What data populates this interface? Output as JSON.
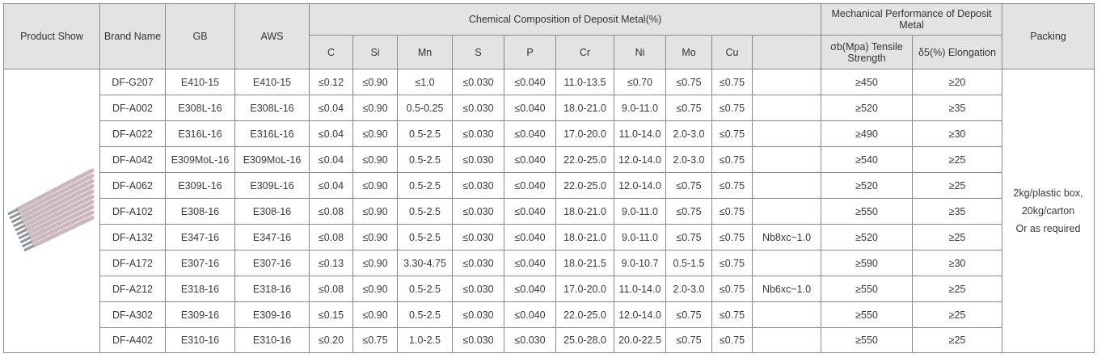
{
  "headers": {
    "product_show": "Product Show",
    "brand_name": "Brand Name",
    "gb": "GB",
    "aws": "AWS",
    "chem_group": "Chemical Composition of Deposit Metal(%)",
    "chem_cols": [
      "C",
      "Si",
      "Mn",
      "S",
      "P",
      "Cr",
      "Ni",
      "Mo",
      "Cu",
      ""
    ],
    "mech_group": "Mechanical Performance of Deposit Metal",
    "tensile": "σb(Mpa) Tensile Strength",
    "elongation": "δ5(%) Elongation",
    "packing": "Packing"
  },
  "rows": [
    {
      "brand": "DF-G207",
      "gb": "E410-15",
      "aws": "E410-15",
      "c": "≤0.12",
      "si": "≤0.90",
      "mn": "≤1.0",
      "s": "≤0.030",
      "p": "≤0.040",
      "cr": "11.0-13.5",
      "ni": "≤0.70",
      "mo": "≤0.75",
      "cu": "≤0.75",
      "other": "",
      "tensile": "≥450",
      "elong": "≥20"
    },
    {
      "brand": "DF-A002",
      "gb": "E308L-16",
      "aws": "E308L-16",
      "c": "≤0.04",
      "si": "≤0.90",
      "mn": "0.5-0.25",
      "s": "≤0.030",
      "p": "≤0.040",
      "cr": "18.0-21.0",
      "ni": "9.0-11.0",
      "mo": "≤0.75",
      "cu": "≤0.75",
      "other": "",
      "tensile": "≥520",
      "elong": "≥35"
    },
    {
      "brand": "DF-A022",
      "gb": "E316L-16",
      "aws": "E316L-16",
      "c": "≤0.04",
      "si": "≤0.90",
      "mn": "0.5-2.5",
      "s": "≤0.030",
      "p": "≤0.040",
      "cr": "17.0-20.0",
      "ni": "11.0-14.0",
      "mo": "2.0-3.0",
      "cu": "≤0.75",
      "other": "",
      "tensile": "≥490",
      "elong": "≥30"
    },
    {
      "brand": "DF-A042",
      "gb": "E309MoL-16",
      "aws": "E309MoL-16",
      "c": "≤0.04",
      "si": "≤0.90",
      "mn": "0.5-2.5",
      "s": "≤0.030",
      "p": "≤0.040",
      "cr": "22.0-25.0",
      "ni": "12.0-14.0",
      "mo": "2.0-3.0",
      "cu": "≤0.75",
      "other": "",
      "tensile": "≥540",
      "elong": "≥25"
    },
    {
      "brand": "DF-A062",
      "gb": "E309L-16",
      "aws": "E309L-16",
      "c": "≤0.04",
      "si": "≤0.90",
      "mn": "0.5-2.5",
      "s": "≤0.030",
      "p": "≤0.040",
      "cr": "22.0-25.0",
      "ni": "12.0-14.0",
      "mo": "≤0.75",
      "cu": "≤0.75",
      "other": "",
      "tensile": "≥520",
      "elong": "≥25"
    },
    {
      "brand": "DF-A102",
      "gb": "E308-16",
      "aws": "E308-16",
      "c": "≤0.08",
      "si": "≤0.90",
      "mn": "0.5-2.5",
      "s": "≤0.030",
      "p": "≤0.040",
      "cr": "18.0-21.0",
      "ni": "9.0-11.0",
      "mo": "≤0.75",
      "cu": "≤0.75",
      "other": "",
      "tensile": "≥550",
      "elong": "≥35"
    },
    {
      "brand": "DF-A132",
      "gb": "E347-16",
      "aws": "E347-16",
      "c": "≤0.08",
      "si": "≤0.90",
      "mn": "0.5-2.5",
      "s": "≤0.030",
      "p": "≤0.040",
      "cr": "18.0-21.0",
      "ni": "9.0-11.0",
      "mo": "≤0.75",
      "cu": "≤0.75",
      "other": "Nb8xc~1.0",
      "tensile": "≥520",
      "elong": "≥25"
    },
    {
      "brand": "DF-A172",
      "gb": "E307-16",
      "aws": "E307-16",
      "c": "≤0.13",
      "si": "≤0.90",
      "mn": "3.30-4.75",
      "s": "≤0.030",
      "p": "≤0.040",
      "cr": "18.0-21.5",
      "ni": "9.0-10.7",
      "mo": "0.5-1.5",
      "cu": "≤0.75",
      "other": "",
      "tensile": "≥590",
      "elong": "≥30"
    },
    {
      "brand": "DF-A212",
      "gb": "E318-16",
      "aws": "E318-16",
      "c": "≤0.08",
      "si": "≤0.90",
      "mn": "0.5-2.5",
      "s": "≤0.030",
      "p": "≤0.040",
      "cr": "17.0-20.0",
      "ni": "11.0-14.0",
      "mo": "2.0-3.0",
      "cu": "≤0.75",
      "other": "Nb6xc~1.0",
      "tensile": "≥550",
      "elong": "≥25"
    },
    {
      "brand": "DF-A302",
      "gb": "E309-16",
      "aws": "E309-16",
      "c": "≤0.15",
      "si": "≤0.90",
      "mn": "0.5-2.5",
      "s": "≤0.030",
      "p": "≤0.040",
      "cr": "22.0-25.0",
      "ni": "12.0-14.0",
      "mo": "≤0.75",
      "cu": "≤0.75",
      "other": "",
      "tensile": "≥550",
      "elong": "≥25"
    },
    {
      "brand": "DF-A402",
      "gb": "E310-16",
      "aws": "E310-16",
      "c": "≤0.20",
      "si": "≤0.75",
      "mn": "1.0-2.5",
      "s": "≤0.030",
      "p": "≤0.030",
      "cr": "25.0-28.0",
      "ni": "20.0-22.5",
      "mo": "≤0.75",
      "cu": "≤0.75",
      "other": "",
      "tensile": "≥550",
      "elong": "≥25"
    }
  ],
  "packing": {
    "line1": "2kg/plastic box,",
    "line2": "20kg/carton",
    "line3": "Or as required"
  },
  "product_image": {
    "icon": "welding-electrodes-icon",
    "rod_color": "#c9b8bd",
    "tip_color": "#8e959c"
  }
}
